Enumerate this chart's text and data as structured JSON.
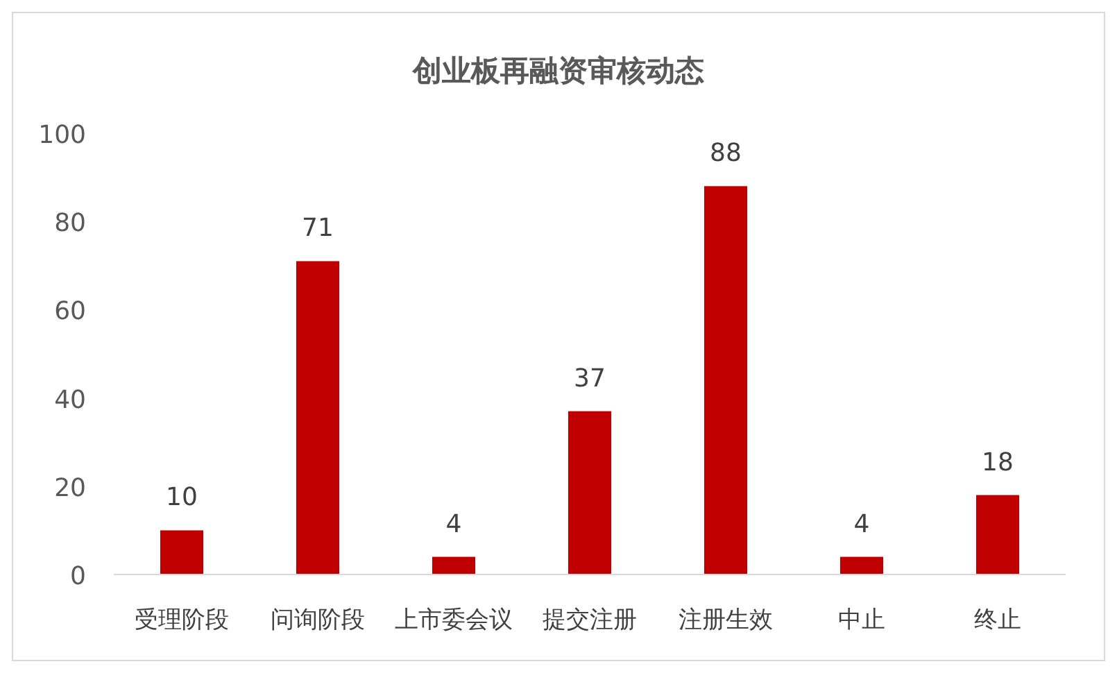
{
  "chart_data": {
    "type": "bar",
    "title": "创业板再融资审核动态",
    "categories": [
      "受理阶段",
      "问询阶段",
      "上市委会议",
      "提交注册",
      "注册生效",
      "中止",
      "终止"
    ],
    "values": [
      10,
      71,
      4,
      37,
      88,
      4,
      18
    ],
    "color": "#c00000",
    "ylim": [
      0,
      100
    ],
    "yticks": [
      0,
      20,
      40,
      60,
      80,
      100
    ],
    "grid": false,
    "data_labels": true
  }
}
